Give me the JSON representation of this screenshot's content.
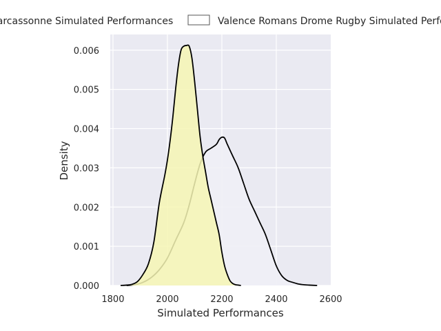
{
  "chart_data": {
    "type": "area",
    "xlabel": "Simulated Performances",
    "ylabel": "Density",
    "xlim": [
      1790,
      2600
    ],
    "ylim": [
      0,
      0.0064
    ],
    "x_ticks": [
      1800,
      2000,
      2200,
      2400,
      2600
    ],
    "x_tick_labels": [
      "1800",
      "2000",
      "2200",
      "2400",
      "2600"
    ],
    "y_ticks": [
      0,
      0.001,
      0.002,
      0.003,
      0.004,
      0.005,
      0.006
    ],
    "y_tick_labels": [
      "0.000",
      "0.001",
      "0.002",
      "0.003",
      "0.004",
      "0.005",
      "0.006"
    ],
    "grid": true,
    "legend_position": "top",
    "series": [
      {
        "name": "Carcassonne Simulated Performances",
        "fill": "#f6f6b4",
        "line": "#000000",
        "x": [
          1828,
          1850,
          1870,
          1890,
          1910,
          1930,
          1950,
          1970,
          1990,
          2000,
          2010,
          2020,
          2030,
          2040,
          2050,
          2060,
          2070,
          2080,
          2090,
          2100,
          2110,
          2120,
          2130,
          2140,
          2150,
          2160,
          2170,
          2180,
          2190,
          2200,
          2210,
          2220,
          2230,
          2240,
          2250,
          2260,
          2270
        ],
        "y": [
          0.0,
          1e-05,
          3e-05,
          0.0001,
          0.00028,
          0.00055,
          0.0011,
          0.0021,
          0.0028,
          0.0032,
          0.0037,
          0.0043,
          0.005,
          0.0056,
          0.006,
          0.0061,
          0.00612,
          0.0061,
          0.0058,
          0.0052,
          0.0045,
          0.0038,
          0.0033,
          0.0029,
          0.0025,
          0.0022,
          0.0019,
          0.0016,
          0.0013,
          0.00085,
          0.0005,
          0.00028,
          0.00012,
          5e-05,
          2e-05,
          1e-05,
          0.0
        ]
      },
      {
        "name": "Valence Romans Drome Rugby Simulated Performances",
        "fill": "#f0f0f6",
        "line": "#000000",
        "x": [
          1850,
          1880,
          1910,
          1940,
          1970,
          2000,
          2030,
          2060,
          2080,
          2100,
          2120,
          2140,
          2160,
          2180,
          2190,
          2200,
          2210,
          2220,
          2240,
          2260,
          2280,
          2300,
          2320,
          2340,
          2360,
          2380,
          2400,
          2420,
          2440,
          2460,
          2480,
          2500,
          2520,
          2550
        ],
        "y": [
          0.0,
          2e-05,
          8e-05,
          0.0002,
          0.0004,
          0.0007,
          0.00115,
          0.0016,
          0.00205,
          0.0026,
          0.0031,
          0.0034,
          0.0035,
          0.0036,
          0.00372,
          0.00378,
          0.00376,
          0.0036,
          0.0033,
          0.003,
          0.0026,
          0.0022,
          0.0019,
          0.0016,
          0.0013,
          0.0009,
          0.0005,
          0.00025,
          0.00013,
          8e-05,
          4e-05,
          2e-05,
          1e-05,
          0.0
        ]
      }
    ]
  }
}
